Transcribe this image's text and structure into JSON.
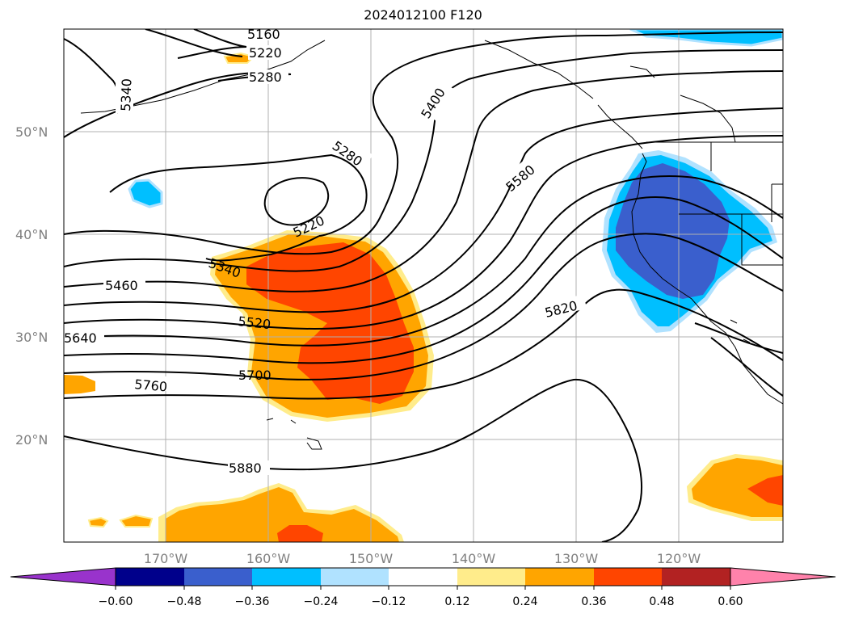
{
  "title": "2024012100 F120",
  "map": {
    "lat_ticks": [
      "50°N",
      "40°N",
      "30°N",
      "20°N"
    ],
    "lon_ticks": [
      "170°W",
      "160°W",
      "150°W",
      "140°W",
      "130°W",
      "120°W"
    ],
    "grid": true,
    "contour_labels": {
      "c5160": "5160",
      "c5220a": "5220",
      "c5280a": "5280",
      "c5340a": "5340",
      "c5400": "5400",
      "c5280b": "5280",
      "c5580": "5580",
      "c5220b": "5220",
      "c5340b": "5340",
      "c5460": "5460",
      "c5520": "5520",
      "c5640": "5640",
      "c5700": "5700",
      "c5820": "5820",
      "c5760": "5760",
      "c5880": "5880"
    }
  },
  "colorbar": {
    "ticks": [
      "−0.60",
      "−0.48",
      "−0.36",
      "−0.24",
      "−0.12",
      "0.12",
      "0.24",
      "0.36",
      "0.48",
      "0.60"
    ],
    "colors": [
      "#9933cc",
      "#00008b",
      "#3a5fcd",
      "#00bfff",
      "#b0e2ff",
      "#ffffff",
      "#ffec8b",
      "#ffa500",
      "#ff4500",
      "#b22222",
      "#ff82ab"
    ]
  },
  "colors": {
    "orange": "#ffa500",
    "red_orange": "#ff4500",
    "yellow": "#ffec8b",
    "royal_blue": "#3a5fcd",
    "sky_blue": "#00bfff",
    "light_blue": "#b0e2ff"
  }
}
